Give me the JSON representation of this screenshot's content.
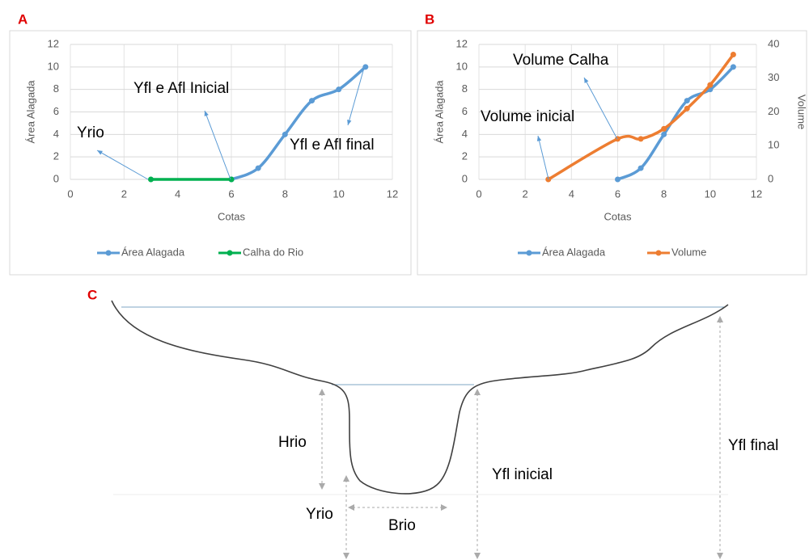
{
  "chart_data": [
    {
      "type": "line",
      "panel": "A",
      "x_label": "Cotas",
      "y_label": "Área Alagada",
      "xlim": [
        0,
        12
      ],
      "xticks": [
        0,
        2,
        4,
        6,
        8,
        10,
        12
      ],
      "ylim": [
        0,
        12
      ],
      "yticks": [
        0,
        2,
        4,
        6,
        8,
        10,
        12
      ],
      "grid": true,
      "series": [
        {
          "name": "Área Alagada",
          "color": "#5b9bd5",
          "x": [
            6,
            7,
            8,
            9,
            10,
            11
          ],
          "values": [
            0,
            1,
            4,
            7,
            8,
            10
          ]
        },
        {
          "name": "Calha do Rio",
          "color": "#00b050",
          "x": [
            3,
            6
          ],
          "values": [
            0,
            0
          ]
        }
      ],
      "annotations": [
        "Yrio",
        "Yfl e Afl Inicial",
        "Yfl e Afl final"
      ]
    },
    {
      "type": "line",
      "panel": "B",
      "x_label": "Cotas",
      "y_label": "Área Alagada",
      "y2_label": "Volume",
      "xlim": [
        0,
        12
      ],
      "xticks": [
        0,
        2,
        4,
        6,
        8,
        10,
        12
      ],
      "ylim": [
        0,
        12
      ],
      "yticks": [
        0,
        2,
        4,
        6,
        8,
        10,
        12
      ],
      "y2lim": [
        0,
        40
      ],
      "y2ticks": [
        0,
        10,
        20,
        30,
        40
      ],
      "grid": true,
      "series": [
        {
          "name": "Área Alagada",
          "color": "#5b9bd5",
          "x": [
            6,
            7,
            8,
            9,
            10,
            11
          ],
          "values": [
            0,
            1,
            4,
            7,
            8,
            10
          ]
        },
        {
          "name": "Volume",
          "color": "#ed7d31",
          "axis": "y2",
          "x": [
            3,
            6,
            7,
            8,
            9,
            10,
            11
          ],
          "values": [
            0,
            12,
            12,
            15,
            21,
            28,
            37
          ]
        }
      ],
      "annotations": [
        "Volume Calha",
        "Volume inicial"
      ]
    }
  ],
  "diagram": {
    "panel": "C",
    "labels": [
      "Hrio",
      "Yrio",
      "Brio",
      "Yfl inicial",
      "Yfl final"
    ]
  }
}
